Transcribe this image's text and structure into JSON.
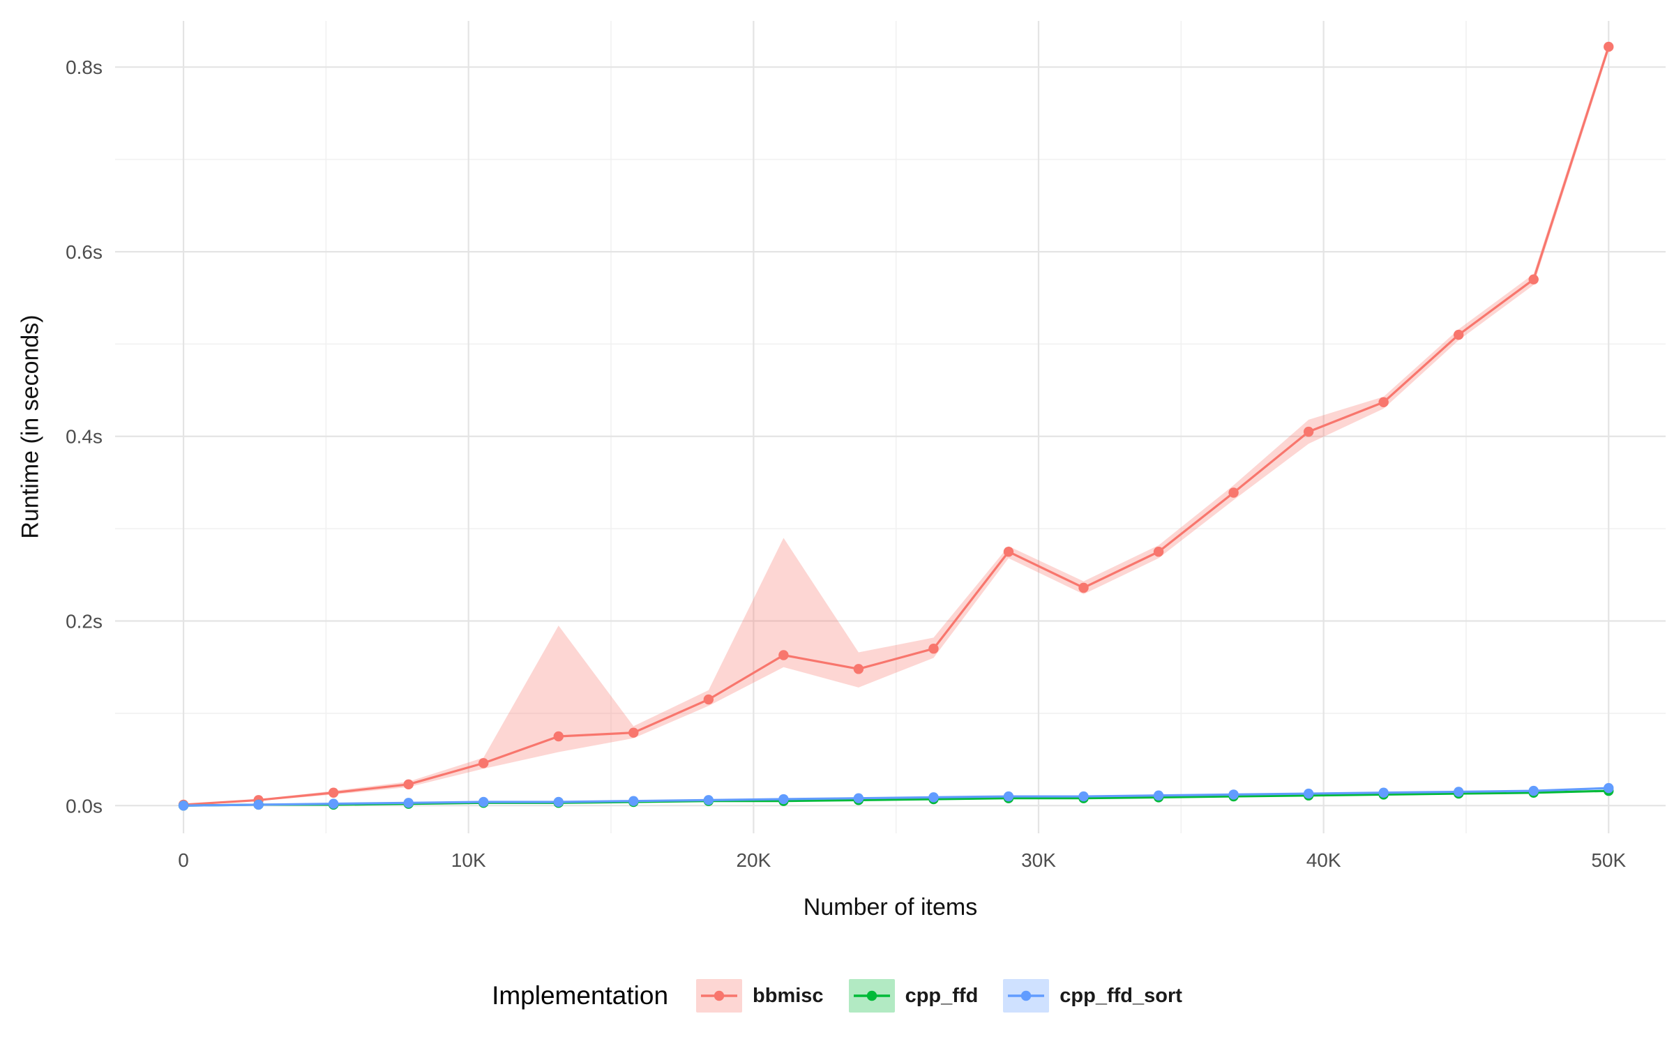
{
  "chart_data": {
    "type": "line",
    "title": "",
    "xlabel": "Number of items",
    "ylabel": "Runtime (in seconds)",
    "legend_title": "Implementation",
    "legend_position": "bottom",
    "grid": "on",
    "xlim": [
      -2400,
      52000
    ],
    "ylim": [
      -0.03,
      0.85
    ],
    "x_ticks": {
      "values": [
        0,
        10000,
        20000,
        30000,
        40000,
        50000
      ],
      "labels": [
        "0",
        "10K",
        "20K",
        "30K",
        "40K",
        "50K"
      ]
    },
    "y_ticks": {
      "values": [
        0,
        0.2,
        0.4,
        0.6,
        0.8
      ],
      "labels": [
        "0.0s",
        "0.2s",
        "0.4s",
        "0.6s",
        "0.8s"
      ]
    },
    "x_minor": [
      5000,
      15000,
      25000,
      35000,
      45000
    ],
    "y_minor": [
      0.1,
      0.3,
      0.5,
      0.7
    ],
    "x": [
      0,
      2632,
      5263,
      7895,
      10526,
      13158,
      15789,
      18421,
      21053,
      23684,
      26316,
      28947,
      31579,
      34211,
      36842,
      39474,
      42105,
      44737,
      47368,
      50000
    ],
    "series": [
      {
        "name": "bbmisc",
        "color": "#F8766D",
        "fill": "rgba(248,118,109,0.3)",
        "values": [
          0.001,
          0.006,
          0.014,
          0.023,
          0.046,
          0.075,
          0.079,
          0.115,
          0.163,
          0.148,
          0.17,
          0.275,
          0.236,
          0.275,
          0.339,
          0.405,
          0.437,
          0.51,
          0.57,
          0.822
        ],
        "upper": [
          0.001,
          0.007,
          0.016,
          0.026,
          0.052,
          0.195,
          0.086,
          0.125,
          0.29,
          0.166,
          0.182,
          0.281,
          0.243,
          0.282,
          0.347,
          0.418,
          0.443,
          0.516,
          0.576,
          0.827
        ],
        "lower": [
          0.001,
          0.005,
          0.012,
          0.02,
          0.04,
          0.058,
          0.073,
          0.108,
          0.15,
          0.128,
          0.16,
          0.268,
          0.229,
          0.268,
          0.331,
          0.392,
          0.43,
          0.504,
          0.564,
          0.817
        ]
      },
      {
        "name": "cpp_ffd",
        "color": "#00BA38",
        "fill": "rgba(0,186,56,0.3)",
        "values": [
          0.0,
          0.001,
          0.001,
          0.002,
          0.003,
          0.003,
          0.004,
          0.005,
          0.005,
          0.006,
          0.007,
          0.008,
          0.008,
          0.009,
          0.01,
          0.011,
          0.012,
          0.013,
          0.014,
          0.016
        ]
      },
      {
        "name": "cpp_ffd_sort",
        "color": "#619CFF",
        "fill": "rgba(97,156,255,0.3)",
        "values": [
          0.0,
          0.001,
          0.002,
          0.003,
          0.004,
          0.004,
          0.005,
          0.006,
          0.007,
          0.008,
          0.009,
          0.01,
          0.01,
          0.011,
          0.012,
          0.013,
          0.014,
          0.015,
          0.016,
          0.019
        ]
      }
    ]
  }
}
